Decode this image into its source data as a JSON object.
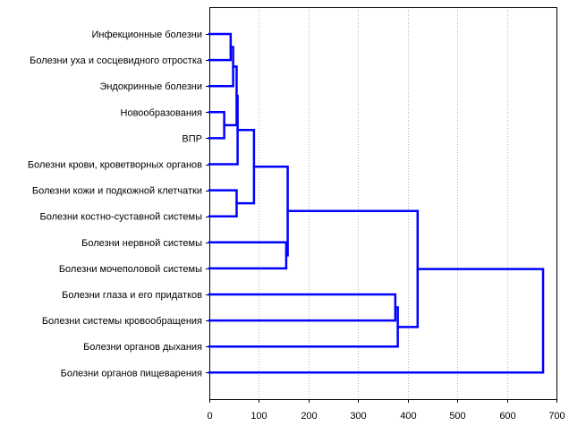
{
  "chart_data": {
    "type": "dendrogram",
    "orientation": "horizontal",
    "title": "",
    "xlabel": "",
    "ylabel": "",
    "xlim": [
      0,
      700
    ],
    "xticks": [
      0,
      100,
      200,
      300,
      400,
      500,
      600,
      700
    ],
    "grid": "vertical dotted lines at x ticks",
    "line_color": "#0000ff",
    "leaves": [
      "Инфекционные болезни",
      "Болезни уха и сосцевидного отростка",
      "Эндокринные болезни",
      "Новообразования",
      "ВПР",
      "Болезни крови, кроветворных органов",
      "Болезни кожи и подкожной клетчатки",
      "Болезни костно-суставной системы",
      "Болезни нервной системы",
      "Болезни мочеполовой системы",
      "Болезни глаза и его придатков",
      "Болезни системы кровообращения",
      "Болезни органов дыхания",
      "Болезни органов пищеварения"
    ],
    "merges": [
      {
        "id": "c1",
        "left": 3,
        "right": 4,
        "height": 30
      },
      {
        "id": "c2",
        "left": 0,
        "right": 1,
        "height": 43
      },
      {
        "id": "c3",
        "left": "c2",
        "right": 2,
        "height": 48
      },
      {
        "id": "c4",
        "left": 6,
        "right": 7,
        "height": 55
      },
      {
        "id": "c5",
        "left": "c3",
        "right": "c1",
        "height": 55
      },
      {
        "id": "c6",
        "left": "c5",
        "right": 5,
        "height": 57
      },
      {
        "id": "c7",
        "left": "c6",
        "right": "c4",
        "height": 90
      },
      {
        "id": "c8",
        "left": 8,
        "right": 9,
        "height": 155
      },
      {
        "id": "c9",
        "left": "c7",
        "right": "c8",
        "height": 158
      },
      {
        "id": "c10",
        "left": 10,
        "right": 11,
        "height": 375
      },
      {
        "id": "c11",
        "left": "c10",
        "right": 12,
        "height": 380
      },
      {
        "id": "c12",
        "left": "c9",
        "right": "c11",
        "height": 420
      },
      {
        "id": "c13",
        "left": "c12",
        "right": 13,
        "height": 673
      }
    ]
  }
}
